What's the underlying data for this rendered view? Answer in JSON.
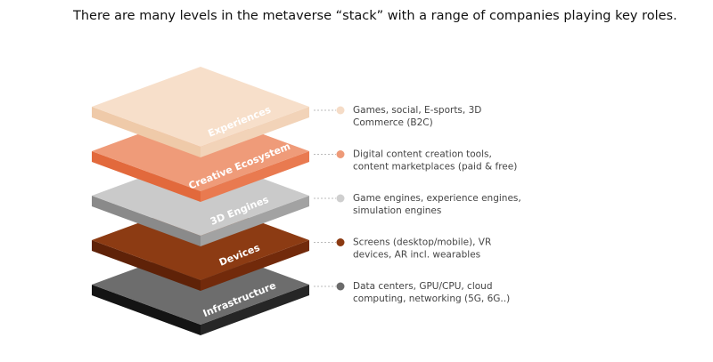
{
  "header": {
    "title": "There are many levels in the metaverse “stack” with a range of companies playing key roles."
  },
  "layers": [
    {
      "label": "Experiences",
      "description": [
        "Games, social, E-sports, 3D",
        "Commerce (B2C)"
      ]
    },
    {
      "label": "Creative Ecosystem",
      "description": [
        "Digital content creation tools,",
        "content marketplaces (paid & free)"
      ]
    },
    {
      "label": "3D Engines",
      "description": [
        "Game engines, experience engines,",
        "simulation engines"
      ]
    },
    {
      "label": "Devices",
      "description": [
        "Screens (desktop/mobile), VR",
        "devices, AR incl. wearables"
      ]
    },
    {
      "label": "Infrastructure",
      "description": [
        "Data centers, GPU/CPU, cloud",
        "computing, networking (5G, 6G..)"
      ]
    }
  ]
}
